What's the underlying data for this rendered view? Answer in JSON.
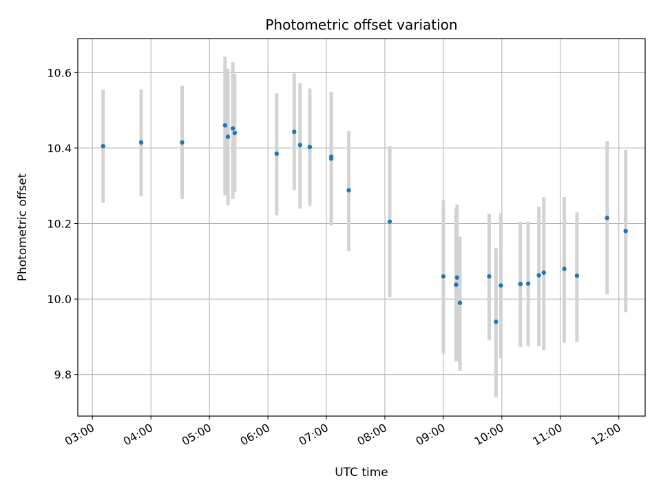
{
  "chart_data": {
    "type": "scatter",
    "title": "Photometric offset variation",
    "xlabel": "UTC time",
    "ylabel": "Photometric offset",
    "x_axis_kind": "time",
    "xlim": [
      "02:45",
      "12:27"
    ],
    "ylim": [
      9.69,
      10.69
    ],
    "x_ticks": [
      "03:00",
      "04:00",
      "05:00",
      "06:00",
      "07:00",
      "08:00",
      "09:00",
      "10:00",
      "11:00",
      "12:00"
    ],
    "y_ticks": [
      9.8,
      10.0,
      10.2,
      10.4,
      10.6
    ],
    "y_tick_labels": [
      "9.8",
      "10.0",
      "10.2",
      "10.4",
      "10.6"
    ],
    "grid": true,
    "x_tick_rotation": "30deg",
    "colors": {
      "marker": "#1f77b4",
      "errorbar": "#d3d3d3",
      "grid": "#b0b0b0"
    },
    "series": [
      {
        "x": [
          "03:11",
          "03:50",
          "04:32",
          "05:16",
          "05:19",
          "05:24",
          "05:26",
          "06:09",
          "06:27",
          "06:33",
          "06:43",
          "07:05",
          "07:05",
          "07:23",
          "08:05",
          "09:00",
          "09:13",
          "09:14",
          "09:17",
          "09:47",
          "09:54",
          "09:59",
          "10:19",
          "10:27",
          "10:38",
          "10:43",
          "11:04",
          "11:17",
          "11:48",
          "12:07"
        ],
        "y": [
          10.405,
          10.415,
          10.415,
          10.46,
          10.43,
          10.452,
          10.44,
          10.385,
          10.443,
          10.408,
          10.403,
          10.372,
          10.377,
          10.288,
          10.205,
          10.06,
          10.038,
          10.057,
          9.99,
          10.06,
          9.94,
          10.036,
          10.04,
          10.041,
          10.063,
          10.07,
          10.08,
          10.062,
          10.215,
          10.18
        ],
        "yerr_low": [
          10.255,
          10.272,
          10.265,
          10.275,
          10.248,
          10.265,
          10.283,
          10.222,
          10.288,
          10.24,
          10.247,
          10.195,
          10.195,
          10.127,
          10.005,
          9.855,
          9.835,
          9.835,
          9.81,
          9.891,
          9.74,
          9.843,
          9.873,
          9.875,
          9.876,
          9.865,
          9.884,
          9.887,
          10.012,
          9.965
        ],
        "yerr_high": [
          10.555,
          10.555,
          10.565,
          10.642,
          10.61,
          10.628,
          10.595,
          10.545,
          10.598,
          10.572,
          10.558,
          10.548,
          10.548,
          10.445,
          10.405,
          10.262,
          10.24,
          10.25,
          10.165,
          10.226,
          10.135,
          10.228,
          10.205,
          10.205,
          10.245,
          10.27,
          10.27,
          10.23,
          10.418,
          10.395
        ]
      }
    ]
  }
}
